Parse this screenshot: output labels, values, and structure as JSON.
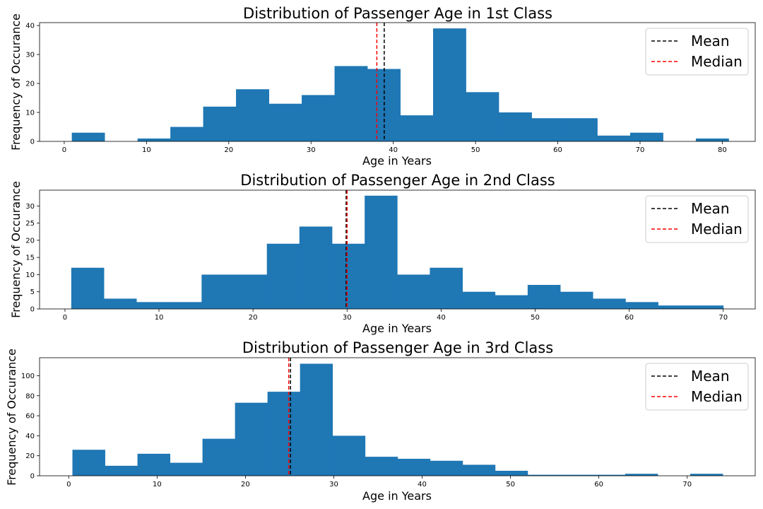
{
  "chart_data": [
    {
      "type": "bar",
      "title": "Distribution of Passenger Age in 1st Class",
      "xlabel": "Age in Years",
      "ylabel": "Frequency of Occurance",
      "xlim": [
        -3,
        84
      ],
      "ylim": [
        0,
        41
      ],
      "xticks": [
        0,
        10,
        20,
        30,
        40,
        50,
        60,
        70,
        80
      ],
      "yticks": [
        0,
        10,
        20,
        30,
        40
      ],
      "bins": [
        0.92,
        4.91,
        8.91,
        12.9,
        16.89,
        20.88,
        24.88,
        28.87,
        32.86,
        36.85,
        40.85,
        44.84,
        48.83,
        52.82,
        56.82,
        60.81,
        64.8,
        68.79,
        72.79,
        76.78,
        80.77
      ],
      "counts": [
        3,
        0,
        1,
        5,
        12,
        18,
        13,
        16,
        26,
        25,
        9,
        39,
        17,
        10,
        8,
        8,
        2,
        3,
        0,
        1
      ],
      "bar_color": "#1f77b4",
      "mean": 38.9,
      "median": 38.0,
      "legend": {
        "position": "top-right",
        "entries": [
          {
            "label": "Mean",
            "color": "#000000"
          },
          {
            "label": "Median",
            "color": "#ff0000"
          }
        ]
      },
      "grid": false
    },
    {
      "type": "bar",
      "title": "Distribution of Passenger Age in 2nd Class",
      "xlabel": "Age in Years",
      "ylabel": "Frequency of Occurance",
      "xlim": [
        -2.7,
        73.4
      ],
      "ylim": [
        0,
        34.6
      ],
      "xticks": [
        0,
        10,
        20,
        30,
        40,
        50,
        60,
        70
      ],
      "yticks": [
        0,
        5,
        10,
        15,
        20,
        25,
        30
      ],
      "bins": [
        0.67,
        4.14,
        7.6,
        11.07,
        14.53,
        18.0,
        21.47,
        24.93,
        28.4,
        31.87,
        35.33,
        38.8,
        42.27,
        45.73,
        49.2,
        52.67,
        56.13,
        59.6,
        63.07,
        66.53,
        70.0
      ],
      "counts": [
        12,
        3,
        2,
        2,
        10,
        10,
        19,
        24,
        19,
        33,
        10,
        12,
        5,
        4,
        7,
        5,
        3,
        2,
        1,
        1
      ],
      "bar_color": "#1f77b4",
      "mean": 29.9,
      "median": 30.0,
      "legend": {
        "position": "top-right",
        "entries": [
          {
            "label": "Mean",
            "color": "#000000"
          },
          {
            "label": "Median",
            "color": "#ff0000"
          }
        ]
      },
      "grid": false
    },
    {
      "type": "bar",
      "title": "Distribution of Passenger Age in 3rd Class",
      "xlabel": "Age in Years",
      "ylabel": "Frequency of Occurance",
      "xlim": [
        -3.3,
        77.7
      ],
      "ylim": [
        0,
        118
      ],
      "xticks": [
        0,
        10,
        20,
        30,
        40,
        50,
        60,
        70
      ],
      "yticks": [
        0,
        20,
        40,
        60,
        80,
        100
      ],
      "bins": [
        0.42,
        4.1,
        7.78,
        11.46,
        15.14,
        18.82,
        22.5,
        26.18,
        29.86,
        33.54,
        37.22,
        40.9,
        44.58,
        48.26,
        51.94,
        55.62,
        59.3,
        62.98,
        66.66,
        70.34,
        74.02
      ],
      "counts": [
        26,
        10,
        22,
        13,
        37,
        73,
        84,
        112,
        40,
        19,
        17,
        15,
        11,
        5,
        1,
        1,
        1,
        2,
        0,
        2
      ],
      "bar_color": "#1f77b4",
      "mean": 25.1,
      "median": 24.9,
      "legend": {
        "position": "top-right",
        "entries": [
          {
            "label": "Mean",
            "color": "#000000"
          },
          {
            "label": "Median",
            "color": "#ff0000"
          }
        ]
      },
      "grid": false
    }
  ]
}
